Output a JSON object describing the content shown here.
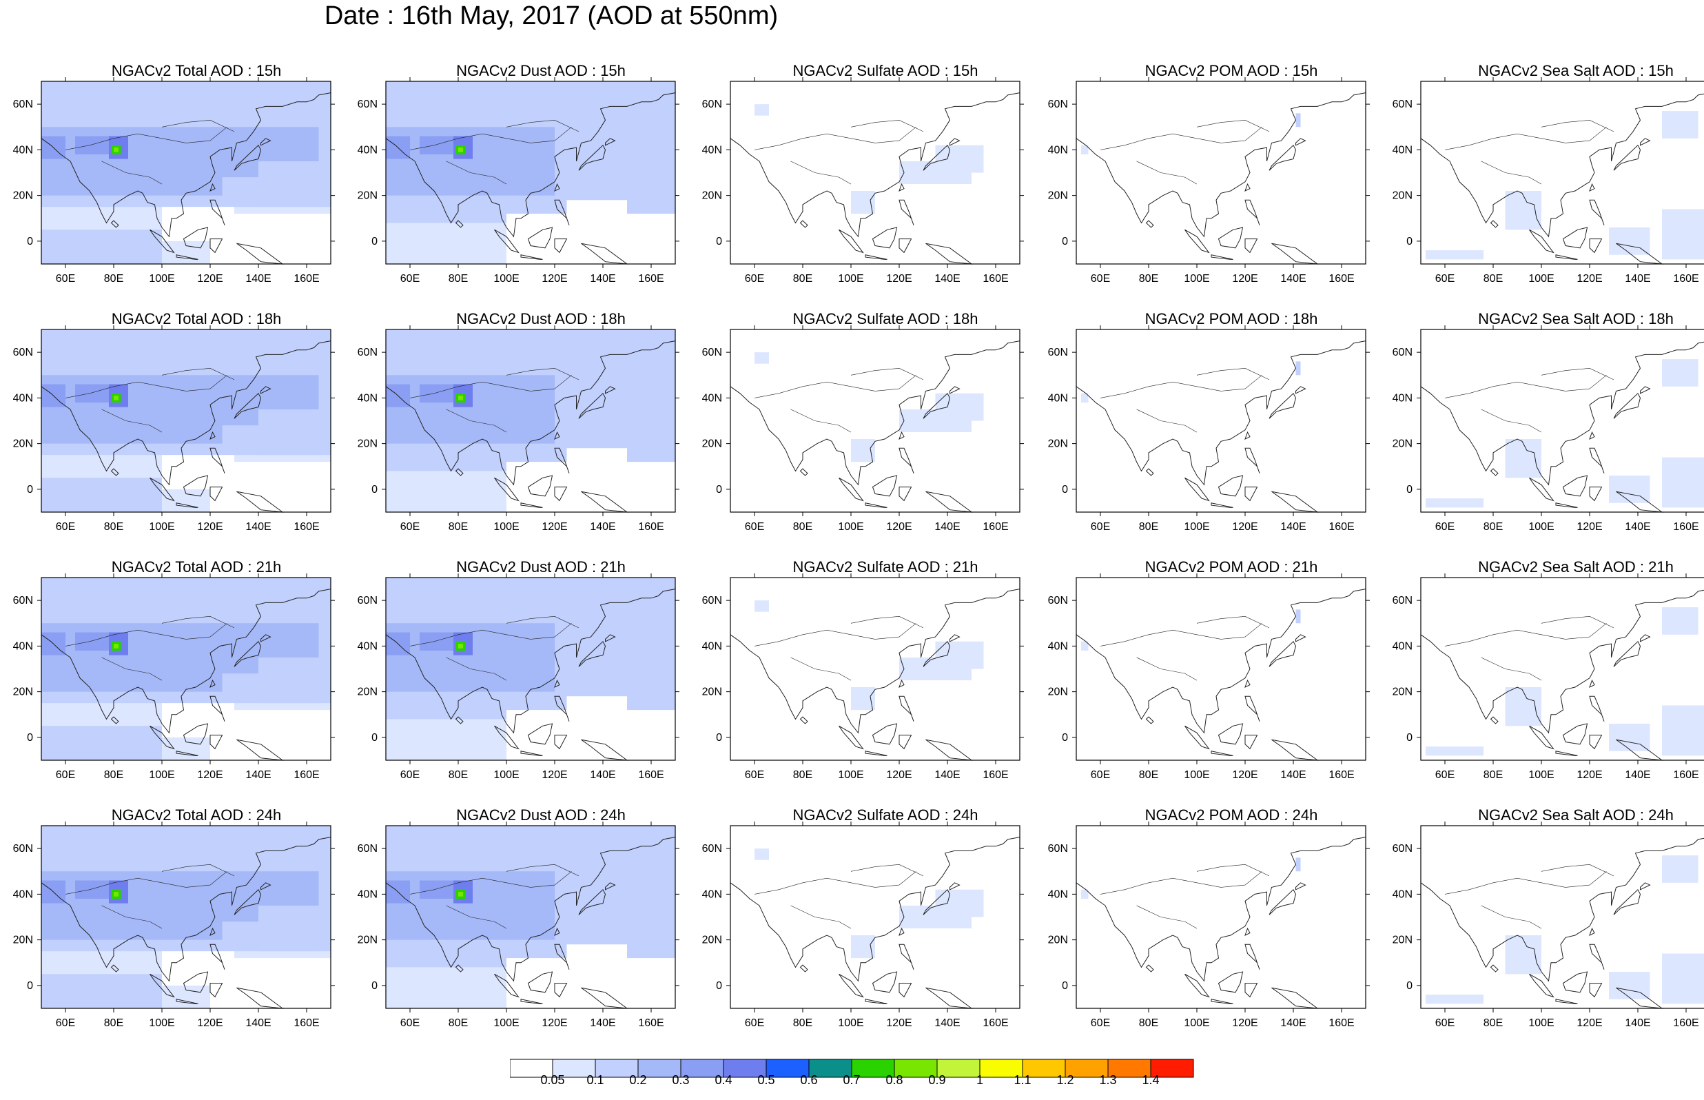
{
  "page": {
    "title": "Date : 16th May, 2017 (AOD at 550nm)"
  },
  "axes": {
    "x_ticks": [
      "60E",
      "80E",
      "100E",
      "120E",
      "140E",
      "160E"
    ],
    "y_ticks": [
      "60N",
      "40N",
      "20N",
      "0"
    ]
  },
  "colorbar": {
    "levels": [
      "0.05",
      "0.1",
      "0.2",
      "0.3",
      "0.4",
      "0.5",
      "0.6",
      "0.7",
      "0.8",
      "0.9",
      "1",
      "1.1",
      "1.2",
      "1.3",
      "1.4"
    ],
    "colors": [
      "#ffffff",
      "#dce6ff",
      "#c1d0fc",
      "#a5b8f8",
      "#8a9ff3",
      "#6f7eee",
      "#1c60ff",
      "#0b8f8b",
      "#2ad300",
      "#78e600",
      "#c2f53a",
      "#f9fd00",
      "#ffc700",
      "#ffa200",
      "#ff7800",
      "#ff1c00"
    ]
  },
  "rows": [
    {
      "hour": "15h",
      "titles": [
        "NGACv2 Total AOD : 15h",
        "NGACv2 Dust AOD : 15h",
        "NGACv2 Sulfate AOD : 15h",
        "NGACv2 POM AOD : 15h",
        "NGACv2 Sea Salt AOD : 15h"
      ]
    },
    {
      "hour": "18h",
      "titles": [
        "NGACv2 Total AOD : 18h",
        "NGACv2 Dust AOD : 18h",
        "NGACv2 Sulfate AOD : 18h",
        "NGACv2 POM AOD : 18h",
        "NGACv2 Sea Salt AOD : 18h"
      ]
    },
    {
      "hour": "21h",
      "titles": [
        "NGACv2 Total AOD : 21h",
        "NGACv2 Dust AOD : 21h",
        "NGACv2 Sulfate AOD : 21h",
        "NGACv2 POM AOD : 21h",
        "NGACv2 Sea Salt AOD : 21h"
      ]
    },
    {
      "hour": "24h",
      "titles": [
        "NGACv2 Total AOD : 24h",
        "NGACv2 Dust AOD : 24h",
        "NGACv2 Sulfate AOD : 24h",
        "NGACv2 POM AOD : 24h",
        "NGACv2 Sea Salt  AOD : 24h"
      ]
    }
  ],
  "species": [
    "total",
    "dust",
    "sulfate",
    "pom",
    "seasalt"
  ]
}
